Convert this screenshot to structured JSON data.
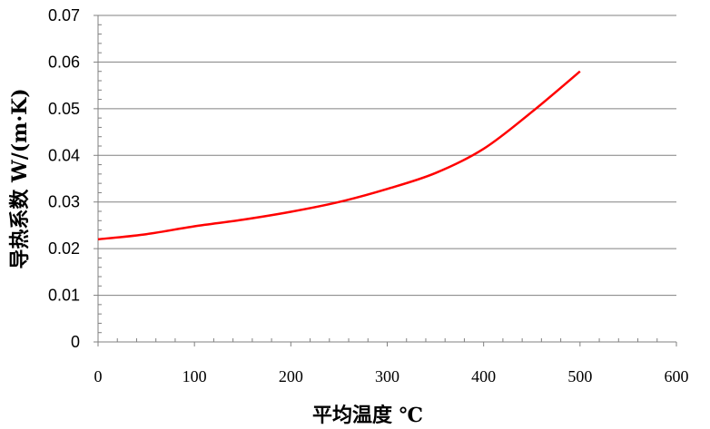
{
  "chart_data": {
    "type": "line",
    "title": "",
    "xlabel": "平均温度 ℃",
    "ylabel": "导热系数 W/(m·K)",
    "xlim": [
      0,
      600
    ],
    "ylim": [
      0,
      0.07
    ],
    "x_ticks": [
      "0",
      "100",
      "200",
      "300",
      "400",
      "500",
      "600"
    ],
    "y_ticks": [
      "0",
      "0.01",
      "0.02",
      "0.03",
      "0.04",
      "0.05",
      "0.06",
      "0.07"
    ],
    "grid": "horizontal",
    "legend": "none",
    "series": [
      {
        "color": "#ff0000",
        "x": [
          0,
          50,
          100,
          150,
          200,
          250,
          300,
          350,
          400,
          450,
          500
        ],
        "y": [
          0.022,
          0.0231,
          0.0248,
          0.0262,
          0.0279,
          0.03,
          0.0328,
          0.0362,
          0.0414,
          0.0493,
          0.058
        ]
      }
    ]
  }
}
